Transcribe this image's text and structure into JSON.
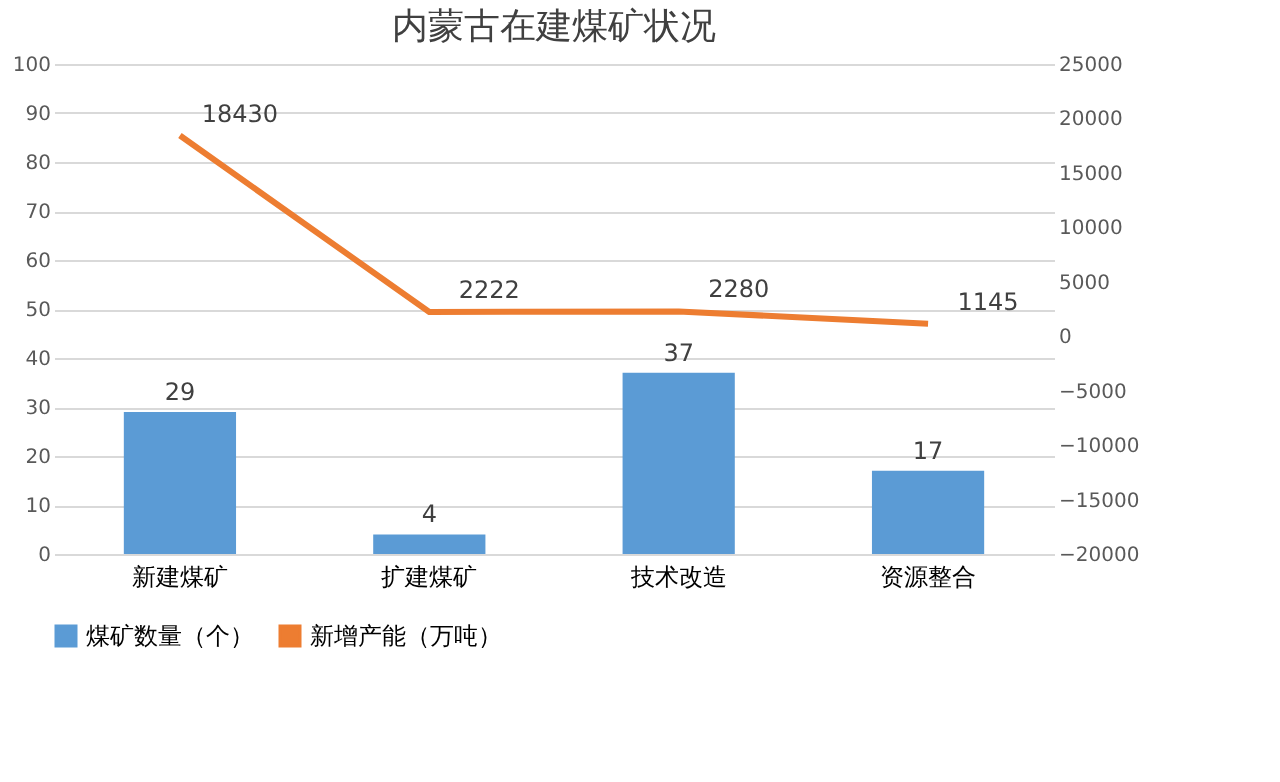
{
  "chart_data": {
    "type": "bar",
    "title": "内蒙古在建煤矿状况",
    "categories": [
      "新建煤矿",
      "扩建煤矿",
      "技术改造",
      "资源整合"
    ],
    "series": [
      {
        "name": "煤矿数量（个）",
        "color": "#5b9bd5",
        "values": [
          29,
          4,
          37,
          17
        ]
      },
      {
        "name": "新增产能（万吨）",
        "type": "line",
        "axis": "y2",
        "color": "#ed7d31",
        "values": [
          18430,
          2222,
          2280,
          1145
        ]
      }
    ],
    "ylim": [
      0,
      100
    ],
    "yticks": [
      0,
      10,
      20,
      30,
      40,
      50,
      60,
      70,
      80,
      90,
      100
    ],
    "y2lim": [
      -20000,
      25000
    ],
    "y2ticks": [
      -20000,
      -15000,
      -10000,
      -5000,
      0,
      5000,
      10000,
      15000,
      20000,
      25000
    ],
    "grid": "y",
    "legend": "bottom",
    "data_labels": true,
    "marker": "none",
    "line_style": "solid"
  }
}
